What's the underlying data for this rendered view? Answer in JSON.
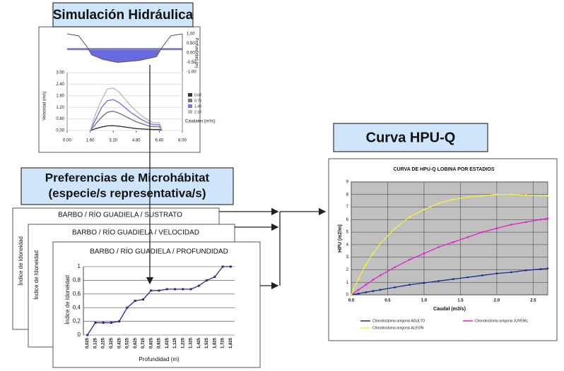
{
  "hydraulic": {
    "title": "Simulación Hidráulica",
    "section": {
      "y_label": "Profundidad (m)",
      "ylim": [
        -1,
        1
      ],
      "yticks": [
        {
          "value": 1,
          "label": "1.00"
        },
        {
          "value": 0.5,
          "label": "0.50"
        },
        {
          "value": 0,
          "label": "0.00"
        },
        {
          "value": -0.5,
          "label": "-0.50"
        },
        {
          "value": -1,
          "label": "-1.00"
        }
      ],
      "x": [
        0,
        0.8,
        1.4,
        1.7,
        2.5,
        3.5,
        5.0,
        6.2,
        6.6,
        7.2,
        8.0
      ],
      "bed": [
        1.0,
        0.9,
        0.3,
        -0.1,
        -0.35,
        -0.5,
        -0.4,
        -0.2,
        0.3,
        0.9,
        1.0
      ],
      "water_level": 0.2
    },
    "velocity": {
      "y_label": "Velocidad (m/s)",
      "legend_title": "Caudales (m³/s)",
      "xlim": [
        0,
        8
      ],
      "xticks": [
        {
          "value": 0,
          "label": "0.00"
        },
        {
          "value": 1.6,
          "label": "1.60"
        },
        {
          "value": 3.2,
          "label": "3.20"
        },
        {
          "value": 4.8,
          "label": "4.80"
        },
        {
          "value": 6.4,
          "label": "6.40"
        },
        {
          "value": 8,
          "label": "8.00"
        }
      ],
      "ylim": [
        0,
        3
      ],
      "yticks": [
        {
          "value": 0,
          "label": "0.00"
        },
        {
          "value": 0.6,
          "label": "0.60"
        },
        {
          "value": 1.2,
          "label": "1.20"
        },
        {
          "value": 1.8,
          "label": "1.80"
        },
        {
          "value": 2.4,
          "label": "2.40"
        },
        {
          "value": 3,
          "label": "3.00"
        }
      ],
      "x": [
        1.6,
        2.0,
        2.4,
        2.8,
        3.2,
        3.6,
        4.0,
        4.4,
        4.8,
        5.2,
        5.6,
        6.0,
        6.4,
        6.6
      ],
      "series": [
        {
          "name": "0.08",
          "color": "#333333",
          "values": [
            0,
            0.1,
            0.18,
            0.24,
            0.25,
            0.22,
            0.18,
            0.14,
            0.1,
            0.08,
            0.06,
            0.05,
            0.05,
            0
          ]
        },
        {
          "name": "0.70",
          "color": "#777777",
          "values": [
            0,
            0.35,
            0.7,
            0.95,
            1.0,
            0.9,
            0.75,
            0.6,
            0.45,
            0.35,
            0.25,
            0.2,
            0.2,
            0
          ]
        },
        {
          "name": "1.40",
          "color": "#7777dd",
          "values": [
            0,
            0.6,
            1.2,
            1.55,
            1.6,
            1.45,
            1.2,
            0.95,
            0.75,
            0.55,
            0.4,
            0.3,
            0.3,
            0
          ]
        },
        {
          "name": "2.10",
          "color": "#bbbbbb",
          "values": [
            0,
            0.9,
            1.6,
            2.15,
            2.2,
            2.0,
            1.65,
            1.3,
            1.0,
            0.75,
            0.55,
            0.4,
            0.4,
            0
          ]
        }
      ]
    }
  },
  "preferences": {
    "title_line1": "Preferencias de Microhábitat",
    "title_line2": "(especie/s representativa/s)",
    "cards": [
      "BARBO / RÍO GUADIELA / SUSTRATO",
      "BARBO / RÍO GUADIELA / VELOCIDAD",
      "BARBO / RÍO GUADIELA / PROFUNDIDAD"
    ],
    "y_label": "Índice de Idoneidad",
    "depth_chart": {
      "x_label": "Profundidad (m)",
      "categories": [
        "0,025",
        "0,125",
        "0,225",
        "0,325",
        "0,425",
        "0,525",
        "0,625",
        "0,725",
        "0,825",
        "0,925",
        "1,025",
        "1,125",
        "1,225",
        "1,325",
        "1,425",
        "1,525",
        "1,625",
        "1,725",
        "1,825"
      ],
      "values": [
        0,
        0.18,
        0.18,
        0.18,
        0.2,
        0.4,
        0.5,
        0.52,
        0.65,
        0.65,
        0.67,
        0.67,
        0.67,
        0.67,
        0.72,
        0.8,
        0.85,
        1,
        1
      ],
      "color": "#2a2a8a",
      "ylim": [
        0,
        1
      ],
      "yticks": [
        0,
        {
          "value": 0.2,
          "label": "0,2"
        },
        {
          "value": 0.4,
          "label": "0,4"
        },
        {
          "value": 0.6,
          "label": "0,6"
        },
        {
          "value": 0.8,
          "label": "0,8"
        },
        1
      ]
    }
  },
  "hpu": {
    "title": "Curva HPU-Q",
    "chart": {
      "type": "line",
      "title": "CURVA DE HPU-Q LOBINA POR ESTADIOS",
      "x_label": "Caudal (m3/s)",
      "y_label": "HPU (m2/m)",
      "xlim": [
        0,
        2.7
      ],
      "xticks": [
        {
          "value": 0,
          "label": "0.0"
        },
        {
          "value": 0.5,
          "label": "0.5"
        },
        {
          "value": 1,
          "label": "1.0"
        },
        {
          "value": 1.5,
          "label": "1.5"
        },
        {
          "value": 2,
          "label": "2.0"
        },
        {
          "value": 2.5,
          "label": "2.5"
        }
      ],
      "ylim": [
        0,
        9
      ],
      "yticks": [
        0,
        1,
        2,
        3,
        4,
        5,
        6,
        7,
        8,
        9
      ],
      "grid": true,
      "x": [
        0,
        0.1,
        0.2,
        0.3,
        0.4,
        0.6,
        0.8,
        1.0,
        1.2,
        1.4,
        1.6,
        1.8,
        2.0,
        2.2,
        2.4,
        2.6,
        2.7
      ],
      "series": [
        {
          "name": "Chondrostoma arrigonis ADULTO",
          "color": "#1a2a8a",
          "values": [
            0,
            0.1,
            0.2,
            0.3,
            0.4,
            0.6,
            0.8,
            0.95,
            1.1,
            1.25,
            1.4,
            1.55,
            1.7,
            1.8,
            1.95,
            2.05,
            2.1
          ]
        },
        {
          "name": "Chondrostoma arrigonis JUVENIL",
          "color": "#e020d0",
          "values": [
            0,
            0.4,
            0.8,
            1.2,
            1.55,
            2.2,
            2.8,
            3.3,
            3.8,
            4.2,
            4.6,
            5.0,
            5.3,
            5.6,
            5.8,
            6.0,
            6.1
          ]
        },
        {
          "name": "Chondrostoma arrigonis ALEVÍN",
          "color": "#f0f040",
          "values": [
            0,
            1.3,
            2.4,
            3.3,
            4.1,
            5.3,
            6.2,
            6.8,
            7.3,
            7.6,
            7.8,
            7.9,
            8.0,
            8.0,
            7.95,
            7.9,
            7.9
          ]
        }
      ]
    }
  }
}
